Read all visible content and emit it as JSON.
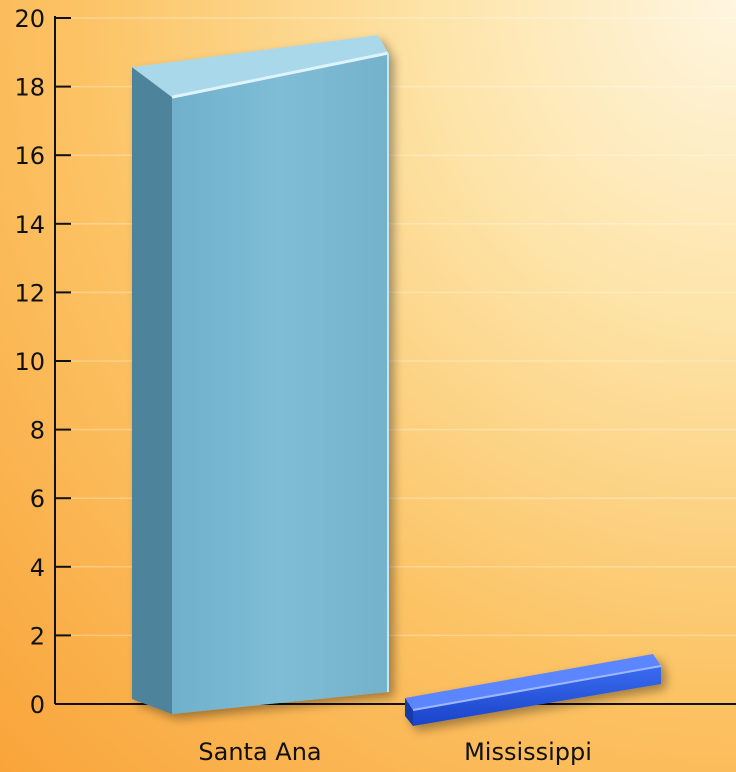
{
  "chart_data": {
    "type": "bar",
    "categories": [
      "Santa Ana",
      "Mississippi"
    ],
    "values": [
      19.5,
      0.7
    ],
    "title": "",
    "xlabel": "",
    "ylabel": "",
    "ylim": [
      0,
      20
    ],
    "yticks": [
      0,
      2,
      4,
      6,
      8,
      10,
      12,
      14,
      16,
      18,
      20
    ],
    "grid": true,
    "legend": "none",
    "bar_colors": [
      "#7ab9d3",
      "#1e4fdc"
    ],
    "background_colors": [
      "#fff6e0",
      "#f9a43a"
    ]
  }
}
